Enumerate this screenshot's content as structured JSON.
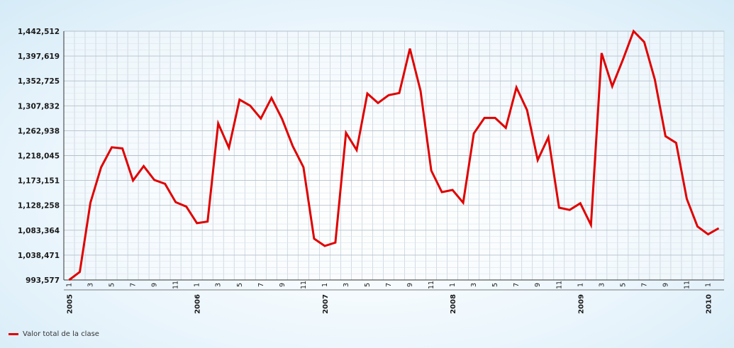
{
  "chart_data": {
    "type": "line",
    "title": "",
    "xlabel": "",
    "ylabel": "",
    "ylim": [
      993577,
      1442512
    ],
    "y_ticks": [
      "993,577",
      "1,038,471",
      "1,083,364",
      "1,128,258",
      "1,173,151",
      "1,218,045",
      "1,262,938",
      "1,307,832",
      "1,352,725",
      "1,397,619",
      "1,442,512"
    ],
    "y_tick_values": [
      993577,
      1038471,
      1083364,
      1128258,
      1173151,
      1218045,
      1262938,
      1307832,
      1352725,
      1397619,
      1442512
    ],
    "month_labels": [
      "1",
      "3",
      "5",
      "7",
      "9",
      "11"
    ],
    "years": [
      "2005",
      "2006",
      "2007",
      "2008",
      "2009",
      "2010"
    ],
    "x": [
      "2005-01",
      "2005-02",
      "2005-03",
      "2005-04",
      "2005-05",
      "2005-06",
      "2005-07",
      "2005-08",
      "2005-09",
      "2005-10",
      "2005-11",
      "2005-12",
      "2006-01",
      "2006-02",
      "2006-03",
      "2006-04",
      "2006-05",
      "2006-06",
      "2006-07",
      "2006-08",
      "2006-09",
      "2006-10",
      "2006-11",
      "2006-12",
      "2007-01",
      "2007-02",
      "2007-03",
      "2007-04",
      "2007-05",
      "2007-06",
      "2007-07",
      "2007-08",
      "2007-09",
      "2007-10",
      "2007-11",
      "2007-12",
      "2008-01",
      "2008-02",
      "2008-03",
      "2008-04",
      "2008-05",
      "2008-06",
      "2008-07",
      "2008-08",
      "2008-09",
      "2008-10",
      "2008-11",
      "2008-12",
      "2009-01",
      "2009-02",
      "2009-03",
      "2009-04",
      "2009-05",
      "2009-06",
      "2009-07",
      "2009-08",
      "2009-09",
      "2009-10",
      "2009-11",
      "2009-12",
      "2010-01",
      "2010-02"
    ],
    "series": [
      {
        "name": "Valor total de la clase",
        "color": "#e00000",
        "values": [
          993577,
          1008000,
          1133000,
          1197000,
          1233000,
          1231000,
          1173000,
          1199000,
          1174000,
          1167000,
          1134000,
          1126000,
          1096000,
          1099000,
          1276000,
          1232000,
          1319000,
          1308000,
          1285000,
          1322000,
          1284000,
          1235000,
          1197000,
          1068000,
          1055000,
          1061000,
          1259000,
          1228000,
          1330000,
          1313000,
          1327000,
          1331000,
          1411000,
          1335000,
          1191000,
          1152000,
          1156000,
          1133000,
          1258000,
          1286000,
          1286000,
          1268000,
          1341000,
          1300000,
          1210000,
          1251000,
          1124000,
          1120000,
          1132000,
          1093000,
          1403000,
          1343000,
          1391000,
          1442512,
          1423000,
          1355000,
          1253000,
          1241000,
          1140000,
          1090000,
          1076000,
          1087000
        ]
      }
    ],
    "grid": true,
    "legend_position": "bottom-left"
  },
  "legend": {
    "label": "Valor total de la clase",
    "color": "#e00000"
  }
}
